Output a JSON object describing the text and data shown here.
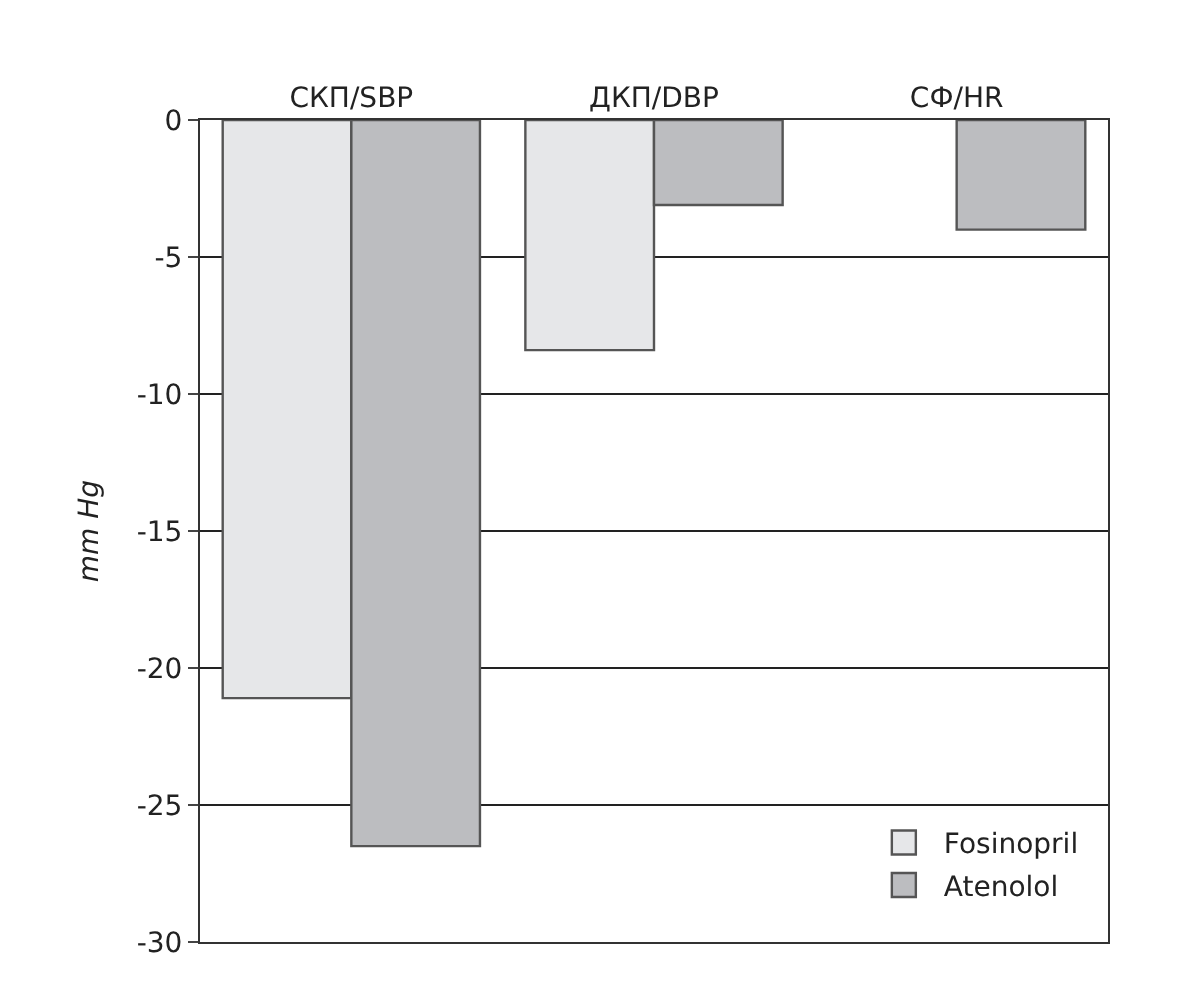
{
  "chart_data": {
    "type": "bar",
    "categories": [
      "СКП/SBP",
      "ДКП/DBP",
      "СФ/HR"
    ],
    "ylabel": "mm Hg",
    "series": [
      {
        "name": "Fosinopril",
        "color": "#e6e7e9",
        "values": [
          -21.1,
          -8.4,
          null
        ]
      },
      {
        "name": "Atenolol",
        "color": "#bcbdc0",
        "values": [
          -26.5,
          -3.1,
          -4.0
        ]
      }
    ],
    "ylim": [
      -30,
      0
    ],
    "yticks": [
      0,
      -5,
      -10,
      -15,
      -20,
      -25,
      -30
    ],
    "grid": "y",
    "legend": "bottom right"
  }
}
